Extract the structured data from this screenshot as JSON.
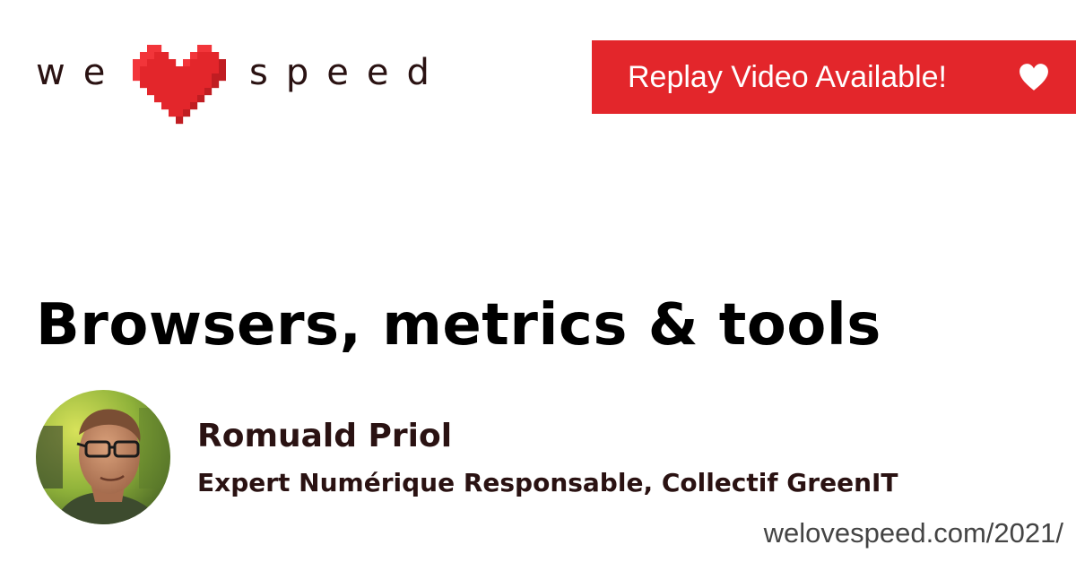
{
  "logo": {
    "word_left": "we",
    "word_right": "speed",
    "icon": "pixel-heart-icon",
    "heart_colors": {
      "light": "#f2353a",
      "mid": "#e3262b",
      "dark": "#c01d22"
    }
  },
  "banner": {
    "text": "Replay Video Available!",
    "icon": "heart-icon",
    "background": "#e3262b"
  },
  "talk": {
    "title": "Browsers, metrics & tools"
  },
  "speaker": {
    "name": "Romuald Priol",
    "role": "Expert Numérique Responsable, Collectif GreenIT",
    "avatar_icon": "speaker-photo"
  },
  "footer": {
    "url": "welovespeed.com/2021/"
  }
}
